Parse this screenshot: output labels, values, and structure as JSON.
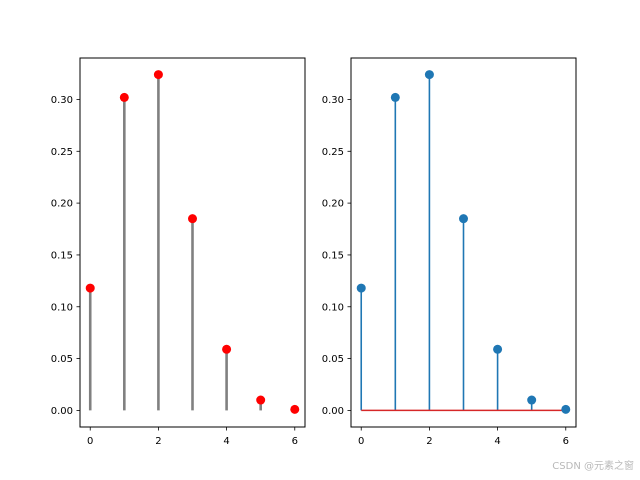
{
  "chart_data": [
    {
      "type": "stem",
      "x": [
        0,
        1,
        2,
        3,
        4,
        5,
        6
      ],
      "values": [
        0.118,
        0.302,
        0.324,
        0.185,
        0.059,
        0.01,
        0.001
      ],
      "xlim": [
        -0.3,
        6.3
      ],
      "ylim": [
        -0.016,
        0.34
      ],
      "xticks": [
        0,
        2,
        4,
        6
      ],
      "yticks": [
        0.0,
        0.05,
        0.1,
        0.15,
        0.2,
        0.25,
        0.3
      ],
      "ytick_labels": [
        "0.00",
        "0.05",
        "0.10",
        "0.15",
        "0.20",
        "0.25",
        "0.30"
      ],
      "line_color": "#808080",
      "marker_color": "#ff0000",
      "baseline": false
    },
    {
      "type": "stem",
      "x": [
        0,
        1,
        2,
        3,
        4,
        5,
        6
      ],
      "values": [
        0.118,
        0.302,
        0.324,
        0.185,
        0.059,
        0.01,
        0.001
      ],
      "xlim": [
        -0.3,
        6.3
      ],
      "ylim": [
        -0.016,
        0.34
      ],
      "xticks": [
        0,
        2,
        4,
        6
      ],
      "yticks": [
        0.0,
        0.05,
        0.1,
        0.15,
        0.2,
        0.25,
        0.3
      ],
      "ytick_labels": [
        "0.00",
        "0.05",
        "0.10",
        "0.15",
        "0.20",
        "0.25",
        "0.30"
      ],
      "line_color": "#1f77b4",
      "marker_color": "#1f77b4",
      "baseline": true,
      "baseline_color": "#d62728"
    }
  ],
  "watermark": "CSDN @元素之窗"
}
